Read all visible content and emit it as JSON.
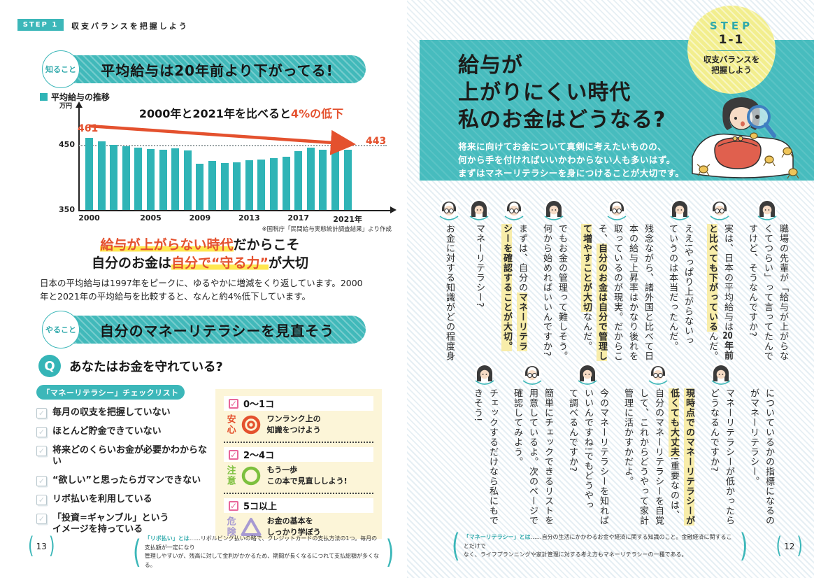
{
  "colors": {
    "teal": "#3cb7b9",
    "hero_teal": "#47bcbe",
    "bar_teal": "#2fb4b6",
    "red": "#e4512e",
    "marker_yellow": "#ffe74f",
    "highlight_yellow": "#f8edaa",
    "box_yellow": "#fcf5d8",
    "badge_circle_yellow": "#f2ee8e",
    "pink": "#e8679a",
    "green": "#7cc03e",
    "purple": "#a79ad2",
    "stripe_blue": "#e6eff4"
  },
  "chart_data": {
    "type": "bar",
    "title": "平均給与の推移",
    "unit": "万円",
    "x": [
      "2000",
      "2001",
      "2002",
      "2003",
      "2004",
      "2005",
      "2006",
      "2007",
      "2008",
      "2009",
      "2010",
      "2011",
      "2012",
      "2013",
      "2014",
      "2015",
      "2016",
      "2017",
      "2018",
      "2019",
      "2020",
      "2021"
    ],
    "values": [
      461,
      455,
      450,
      448,
      446,
      444,
      443,
      445,
      441,
      421,
      425,
      422,
      423,
      426,
      427,
      430,
      432,
      440,
      446,
      442,
      441,
      443
    ],
    "ylim": [
      350,
      465
    ],
    "yticks": [
      350,
      450
    ],
    "grid": "dotted line at 450",
    "legend_position": "top-left",
    "annotations": {
      "first_bar_label": "461",
      "last_bar_label": "443",
      "arrow_note": "2000年と2021年を比べると4%の低下"
    },
    "source": "※国税庁「民間給与実態統計調査結果」より作成"
  },
  "left_page": {
    "header": {
      "tag": "STEP 1",
      "title": "収支バランスを把握しよう"
    },
    "know_row": {
      "badge": "知ること",
      "banner": "平均給与は20年前より下がってる!"
    },
    "chart": {
      "legend": "平均給与の推移",
      "ylabel": "万円",
      "ytick_top": "450",
      "ytick_bottom": "350",
      "note_black": "2000年と2021年を比べると",
      "note_red": "4%の低下",
      "label_first": "461",
      "label_last": "443",
      "xticks": [
        {
          "label": "2000",
          "i": 0
        },
        {
          "label": "2005",
          "i": 5
        },
        {
          "label": "2009",
          "i": 9
        },
        {
          "label": "2013",
          "i": 13
        },
        {
          "label": "2017",
          "i": 17
        },
        {
          "label": "2021年",
          "i": 21
        }
      ],
      "source": "※国税庁「民間給与実態統計調査結果」より作成"
    },
    "headline": {
      "lines": [
        [
          {
            "t": "給与が上がらない時代",
            "m": true
          },
          {
            "t": "だからこそ"
          }
        ],
        [
          {
            "t": "自分のお金は"
          },
          {
            "t": "自分で“守る力”",
            "m": true
          },
          {
            "t": "が大切"
          }
        ]
      ]
    },
    "body": "日本の平均給与は1997年をピークに、ゆるやかに増減をくり返しています。2000年と2021年の平均給与を比較すると、なんと約4%低下しています。",
    "do_row": {
      "badge": "やること",
      "banner": "自分のマネーリテラシーを見直そう"
    },
    "question": {
      "mark": "Q",
      "text": "あなたはお金を守れている?"
    },
    "checklist": {
      "title": "「マネーリテラシー」チェックリスト",
      "items": [
        {
          "lines": [
            "毎月の収支を把握していない"
          ]
        },
        {
          "lines": [
            "ほとんど貯金できていない"
          ]
        },
        {
          "lines": [
            "将来どのくらいお金が必要かわからない"
          ]
        },
        {
          "lines": [
            "“欲しい”と思ったらガマンできない"
          ]
        },
        {
          "lines": [
            "リボ払いを利用している"
          ]
        },
        {
          "lines": [
            "「投資=ギャンブル」という",
            "イメージを持っている"
          ]
        }
      ]
    },
    "score_box": {
      "sections": [
        {
          "count": "0〜1コ",
          "word": "安心",
          "color": "#e4512e",
          "symbol": "double-circle",
          "desc": [
            "ワンランク上の",
            "知識をつけよう"
          ]
        },
        {
          "count": "2〜4コ",
          "word": "注意",
          "color": "#7cc03e",
          "symbol": "circle",
          "desc": [
            "もう一歩",
            "この本で見直ししよう!"
          ]
        },
        {
          "count": "5コ以上",
          "word": "危険",
          "color": "#a79ad2",
          "symbol": "triangle",
          "desc": [
            "お金の基本を",
            "しっかり学ぼう"
          ]
        }
      ]
    },
    "page_num": "13",
    "footnote": {
      "term": "「リボ払い」とは",
      "line1": "……リボルビング払いの略で、クレジットカードの支払方法の1つ。毎月の支払額が一定になり",
      "line2": "管理しやすいが、残高に対して金利がかかるため、期間が長くなるにつれて支払総額が多くなる。"
    }
  },
  "right_page": {
    "step_circle": {
      "step": "STEP",
      "number": "1-1",
      "label_line1": "収支バランスを",
      "label_line2": "把握しよう"
    },
    "hero": {
      "title_line1": "給与が",
      "title_line2": "上がりにくい時代",
      "title_line3": "私のお金はどうなる?",
      "sub_line1": "将来に向けてお金について真剣に考えたいものの、",
      "sub_line2": "何から手を付ければいいかわからない人も多いはず。",
      "sub_line3": "まずはマネーリテラシーを身につけることが大切です。"
    },
    "illustration": "girl-with-magnifying-glass-looking-at-coin-purse-with-escaping-coins",
    "conversation": {
      "top": [
        {
          "sp": "a",
          "lines": [
            [
              {
                "t": "職場の先輩が「給与が上がらな"
              }
            ],
            [
              {
                "t": "くてつらい」って言ってたんで"
              }
            ],
            [
              {
                "t": "すけど、そうなんですか?"
              }
            ]
          ]
        },
        {
          "sp": "b",
          "lines": [
            [
              {
                "t": "実は、日本の平均給与は"
              },
              {
                "t": "20",
                "b": true,
                "c": true
              },
              {
                "t": "年前",
                "b": true
              }
            ],
            [
              {
                "t": "と比べても下がっている",
                "h": true
              },
              {
                "t": "んだ。"
              }
            ]
          ]
        },
        {
          "sp": "a",
          "lines": [
            [
              {
                "t": "ええ!やっぱり上がらないっ"
              }
            ],
            [
              {
                "t": "ていうのは本当だったんだ。"
              }
            ]
          ]
        },
        {
          "sp": "b",
          "lines": [
            [
              {
                "t": "残念ながら、諸外国と比べて日"
              }
            ],
            [
              {
                "t": "本の給与上昇率はかなり後れを"
              }
            ],
            [
              {
                "t": "取っているのが現実。だからこ"
              }
            ],
            [
              {
                "t": "そ、"
              },
              {
                "t": "自分のお金は自分で管理し",
                "h": true
              }
            ],
            [
              {
                "t": "て増やすことが大切",
                "h": true
              },
              {
                "t": "なんだ。"
              }
            ]
          ]
        },
        {
          "sp": "a",
          "lines": [
            [
              {
                "t": "でもお金の管理って難しそう。"
              }
            ],
            [
              {
                "t": "何から始めればいいんですか?"
              }
            ]
          ]
        },
        {
          "sp": "b",
          "lines": [
            [
              {
                "t": "まずは、自分の"
              },
              {
                "t": "マネーリテラ",
                "h": true
              }
            ],
            [
              {
                "t": "シーを確認することが大切。",
                "h": true
              }
            ]
          ]
        },
        {
          "sp": "a",
          "lines": [
            [
              {
                "t": "マネーリテラシー?"
              }
            ]
          ]
        },
        {
          "sp": "b",
          "lines": [
            [
              {
                "t": "お金に対する知識がどの程度身"
              }
            ]
          ]
        }
      ],
      "bottom": [
        {
          "sp": null,
          "lines": [
            [
              {
                "t": "についているかの指標になるの"
              }
            ],
            [
              {
                "t": "がマネーリテラシー。"
              }
            ]
          ]
        },
        {
          "sp": "a",
          "lines": [
            [
              {
                "t": "マネーリテラシーが低かったら"
              }
            ],
            [
              {
                "t": "どうなるんですか?"
              }
            ]
          ]
        },
        {
          "sp": "b",
          "lines": [
            [
              {
                "t": "現時点でのマネーリテラシーが",
                "h": true
              }
            ],
            [
              {
                "t": "低くても大丈夫",
                "h": true
              },
              {
                "t": "!重要なのは、"
              }
            ],
            [
              {
                "t": "自分のマネーリテラシーを自覚"
              }
            ],
            [
              {
                "t": "して、これからどうやって家計"
              }
            ],
            [
              {
                "t": "管理に活かすかだよ。"
              }
            ]
          ]
        },
        {
          "sp": "a",
          "lines": [
            [
              {
                "t": "今のマネーリテラシーを知れば"
              }
            ],
            [
              {
                "t": "いいんですね!でもどうやっ"
              }
            ],
            [
              {
                "t": "て調べるんですか?"
              }
            ]
          ]
        },
        {
          "sp": "b",
          "lines": [
            [
              {
                "t": "簡単にチェックできるリストを"
              }
            ],
            [
              {
                "t": "用意しているよ。次のページで"
              }
            ],
            [
              {
                "t": "確認してみよう。"
              }
            ]
          ]
        },
        {
          "sp": "a",
          "lines": [
            [
              {
                "t": "チェックするだけなら私にもで"
              }
            ],
            [
              {
                "t": "きそう!"
              }
            ]
          ]
        }
      ]
    },
    "page_num": "12",
    "footnote": {
      "term": "「マネーリテラシー」とは",
      "line1": "……自分の生活にかかわるお金や経済に関する知識のこと。金融経済に関することだけで",
      "line2": "なく、ライフプランニングや家計管理に対する考え方もマネーリテラシーの一種である。"
    }
  }
}
